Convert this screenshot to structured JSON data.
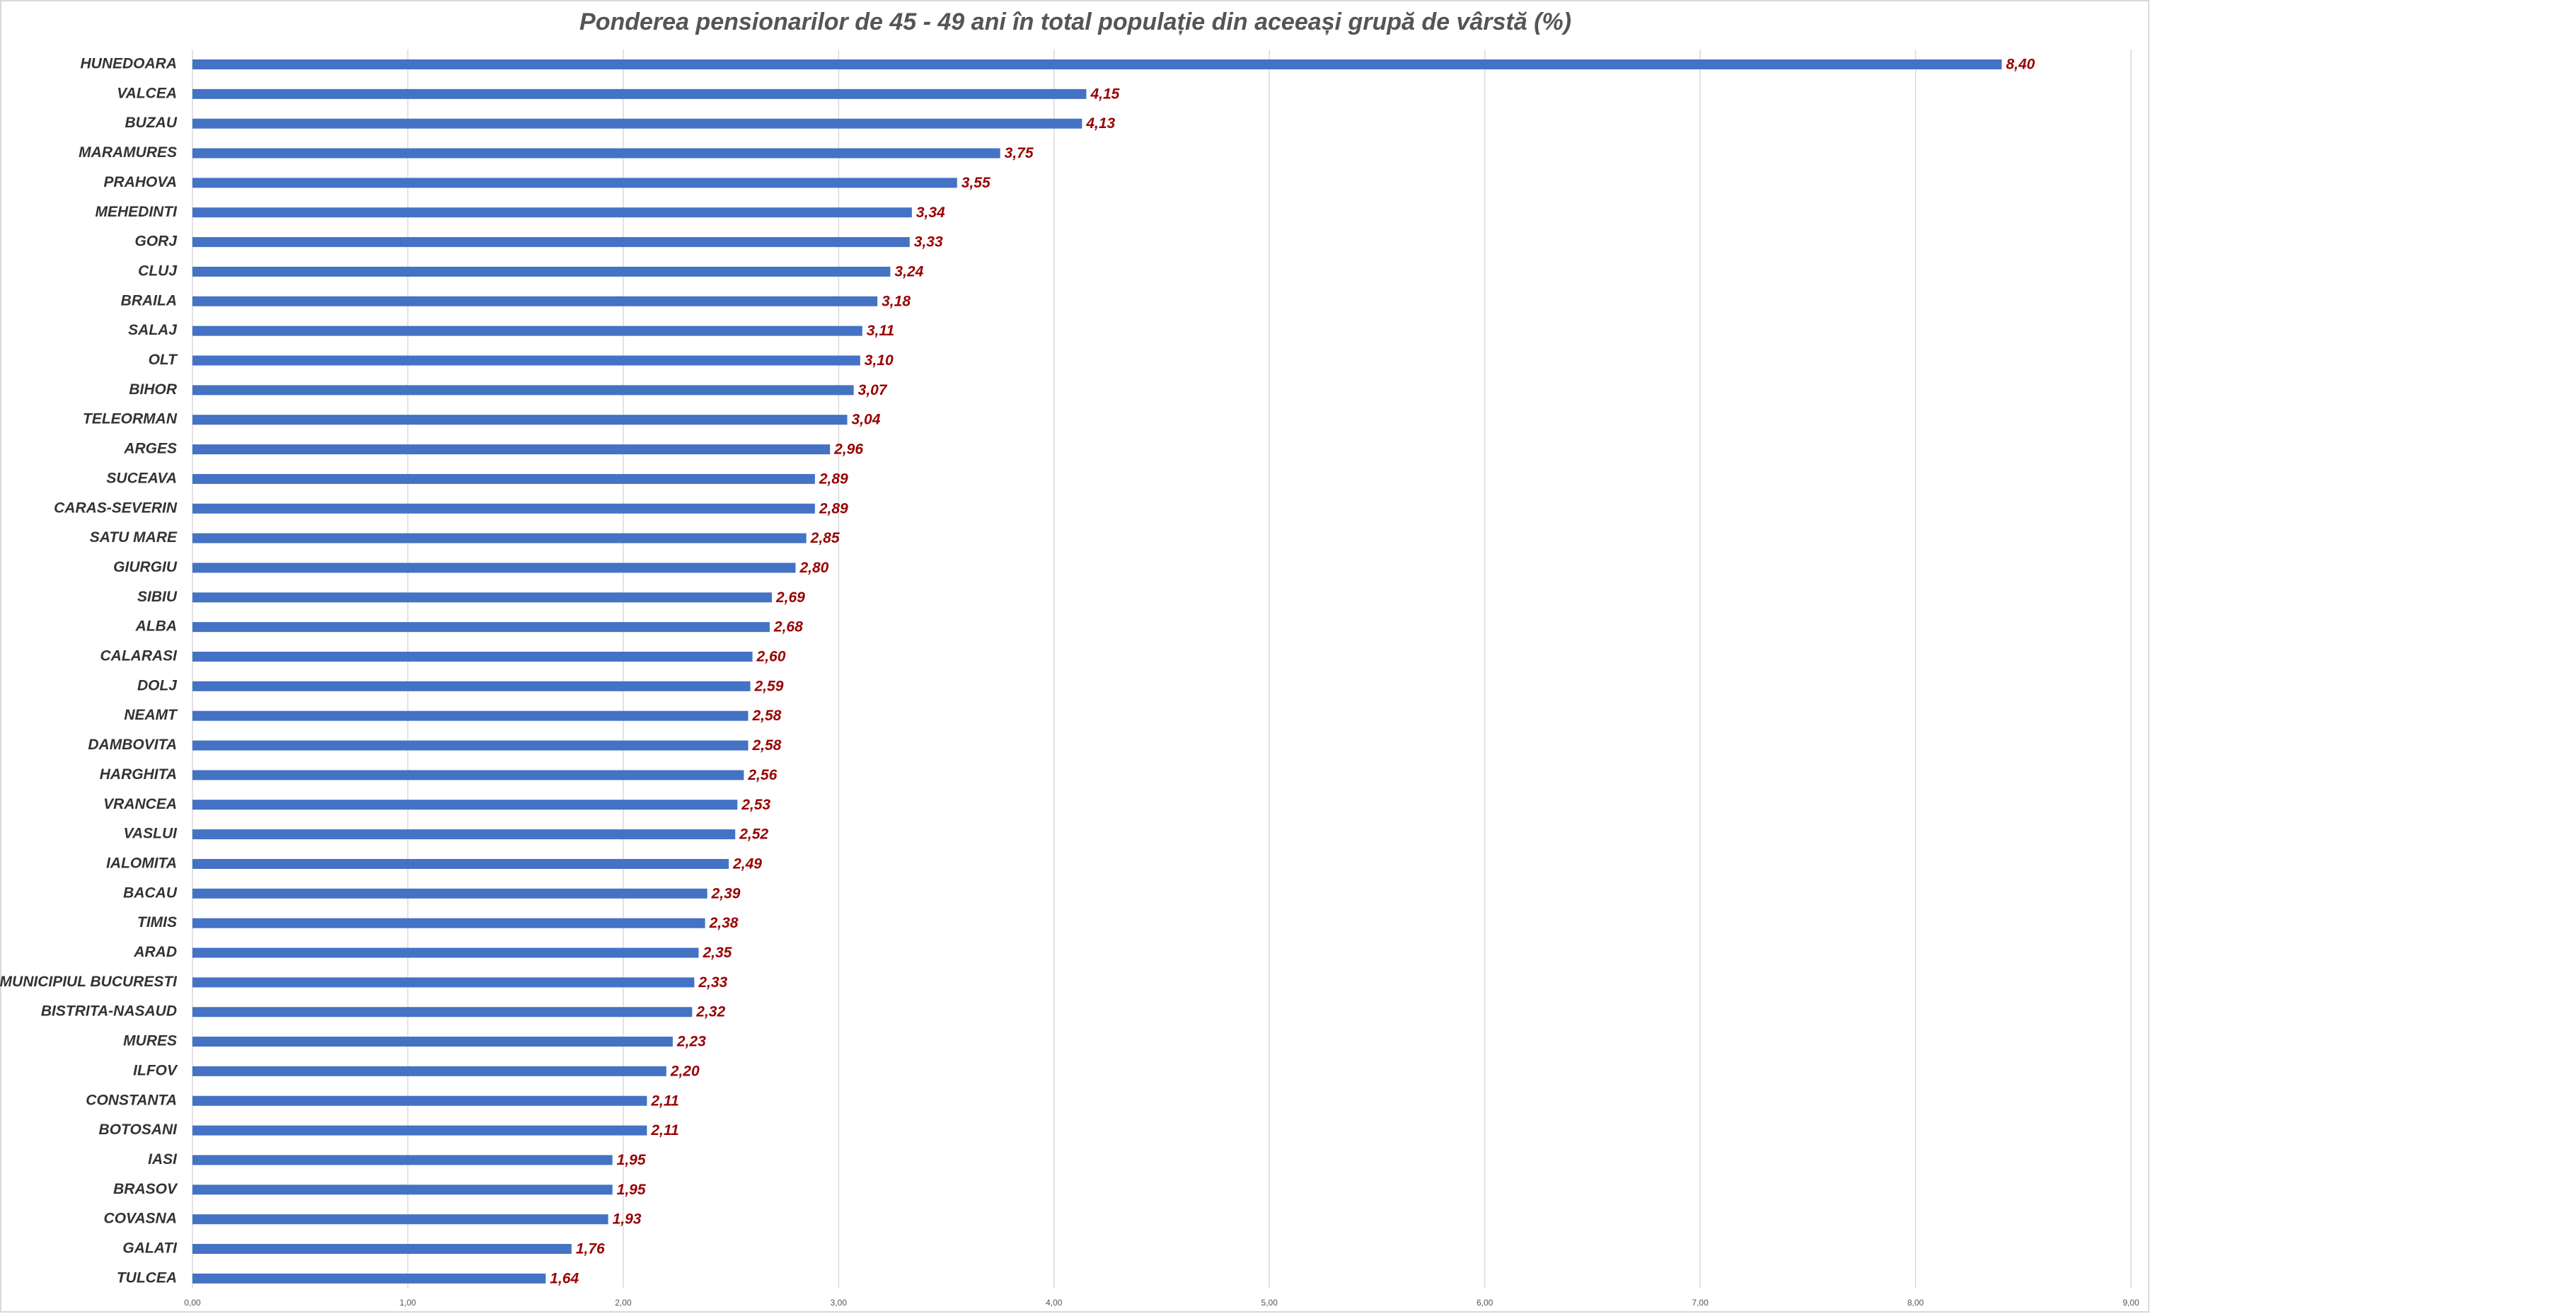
{
  "chart_data": {
    "type": "bar",
    "orientation": "horizontal",
    "title": "Ponderea pensionarilor de 45 - 49 ani în total populație din aceeași grupă de vârstă (%)",
    "categories": [
      "HUNEDOARA",
      "VALCEA",
      "BUZAU",
      "MARAMURES",
      "PRAHOVA",
      "MEHEDINTI",
      "GORJ",
      "CLUJ",
      "BRAILA",
      "SALAJ",
      "OLT",
      "BIHOR",
      "TELEORMAN",
      "ARGES",
      "SUCEAVA",
      "CARAS-SEVERIN",
      "SATU MARE",
      "GIURGIU",
      "SIBIU",
      "ALBA",
      "CALARASI",
      "DOLJ",
      "NEAMT",
      "DAMBOVITA",
      "HARGHITA",
      "VRANCEA",
      "VASLUI",
      "IALOMITA",
      "BACAU",
      "TIMIS",
      "ARAD",
      "MUNICIPIUL BUCURESTI",
      "BISTRITA-NASAUD",
      "MURES",
      "ILFOV",
      "CONSTANTA",
      "BOTOSANI",
      "IASI",
      "BRASOV",
      "COVASNA",
      "GALATI",
      "TULCEA"
    ],
    "values": [
      8.4,
      4.15,
      4.13,
      3.75,
      3.55,
      3.34,
      3.33,
      3.24,
      3.18,
      3.11,
      3.1,
      3.07,
      3.04,
      2.96,
      2.89,
      2.89,
      2.85,
      2.8,
      2.69,
      2.68,
      2.6,
      2.59,
      2.58,
      2.58,
      2.56,
      2.53,
      2.52,
      2.49,
      2.39,
      2.38,
      2.35,
      2.33,
      2.32,
      2.23,
      2.2,
      2.11,
      2.11,
      1.95,
      1.95,
      1.93,
      1.76,
      1.64
    ],
    "value_labels": [
      "8,40",
      "4,15",
      "4,13",
      "3,75",
      "3,55",
      "3,34",
      "3,33",
      "3,24",
      "3,18",
      "3,11",
      "3,10",
      "3,07",
      "3,04",
      "2,96",
      "2,89",
      "2,89",
      "2,85",
      "2,80",
      "2,69",
      "2,68",
      "2,60",
      "2,59",
      "2,58",
      "2,58",
      "2,56",
      "2,53",
      "2,52",
      "2,49",
      "2,39",
      "2,38",
      "2,35",
      "2,33",
      "2,32",
      "2,23",
      "2,20",
      "2,11",
      "2,11",
      "1,95",
      "1,95",
      "1,93",
      "1,76",
      "1,64"
    ],
    "color": "#4472c4",
    "label_color": "#990000",
    "xlim": [
      0,
      9
    ],
    "xticks": [
      {
        "value": 0,
        "label": "0,00"
      },
      {
        "value": 1,
        "label": "1,00"
      },
      {
        "value": 2,
        "label": "2,00"
      },
      {
        "value": 3,
        "label": "3,00"
      },
      {
        "value": 4,
        "label": "4,00"
      },
      {
        "value": 5,
        "label": "5,00"
      },
      {
        "value": 6,
        "label": "6,00"
      },
      {
        "value": 7,
        "label": "7,00"
      },
      {
        "value": 8,
        "label": "8,00"
      },
      {
        "value": 9,
        "label": "9,00"
      }
    ],
    "grid": true
  }
}
